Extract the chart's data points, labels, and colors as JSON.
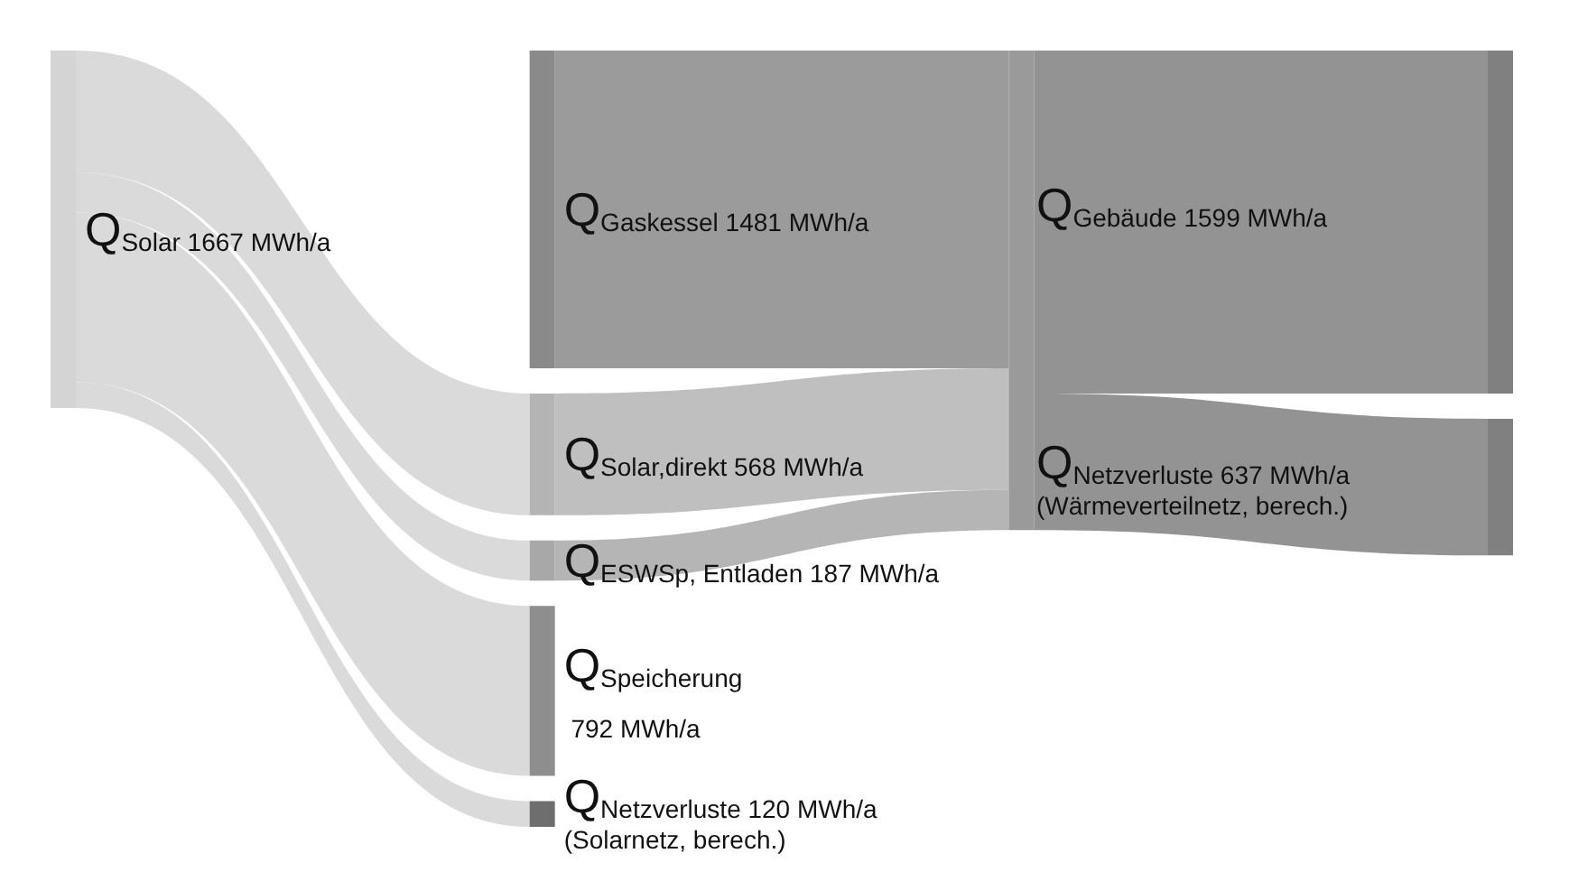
{
  "chart_data": {
    "type": "other",
    "categories": [
      "Q$_{Gaskessel}$",
      "Q$_{Solar}$",
      "Q$_{Solar,direkt}$",
      "Q$_{ESWSp, Entladen}$",
      "Q$_{Speicherung}$",
      "Q$_{Netzverluste}$",
      null,
      "Q$_{Gebäude}$",
      "Q$_{Netzverluste}$"
    ],
    "values": [
      1481,
      1667,
      568,
      187,
      792,
      120,
      null,
      1599,
      637
    ],
    "value_labels": [
      "1481 MWh/a",
      "1667 MWh/a",
      "568 MWh/a",
      "187 MWh/a",
      "792 MWh/a",
      "120 MWh/a",
      null,
      "1599 MWh/a",
      "637 MWh/a"
    ],
    "colors": [
      "#8a8a8a",
      "#d4d4d4",
      "#b4b4b4",
      "#a8a8a8",
      "#8e8e8e",
      "#6e6e6e",
      "#9a9a9a",
      "#808080",
      "#808080"
    ],
    "annotations": [
      "(Wärmeverteilnetz, berech.)",
      "(Solarnetz, berech.)"
    ]
  }
}
